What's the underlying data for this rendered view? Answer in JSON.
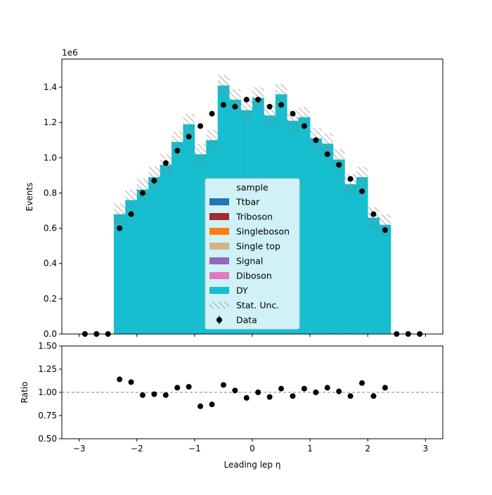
{
  "chart_data": [
    {
      "type": "bar",
      "panel": "main",
      "stacked": true,
      "ylabel": "Events",
      "y_scale_label": "1e6",
      "xlim": [
        -3.3,
        3.3
      ],
      "ylim": [
        0,
        1.56
      ],
      "yticks": [
        0.0,
        0.2,
        0.4,
        0.6,
        0.8,
        1.0,
        1.2,
        1.4
      ],
      "ytick_labels": [
        "0.0",
        "0.2",
        "0.4",
        "0.6",
        "0.8",
        "1.0",
        "1.2",
        "1.4"
      ],
      "bin_edges": [
        -2.4,
        -2.2,
        -2.0,
        -1.8,
        -1.6,
        -1.4,
        -1.2,
        -1.0,
        -0.8,
        -0.6,
        -0.4,
        -0.2,
        0.0,
        0.2,
        0.4,
        0.6,
        0.8,
        1.0,
        1.2,
        1.4,
        1.6,
        1.8,
        2.0,
        2.2,
        2.4
      ],
      "series": [
        {
          "name": "Ttbar",
          "color": "#1f77b4",
          "values": [
            0,
            0,
            0,
            0,
            0,
            0,
            0,
            0,
            0,
            0,
            0,
            0,
            0,
            0,
            0,
            0,
            0,
            0,
            0,
            0,
            0,
            0,
            0,
            0
          ]
        },
        {
          "name": "Triboson",
          "color": "#a52a2a",
          "values": [
            0,
            0,
            0,
            0,
            0,
            0,
            0,
            0,
            0,
            0,
            0,
            0,
            0,
            0,
            0,
            0,
            0,
            0,
            0,
            0,
            0,
            0,
            0,
            0
          ]
        },
        {
          "name": "Singleboson",
          "color": "#ff7f0e",
          "values": [
            0,
            0,
            0,
            0,
            0,
            0,
            0,
            0,
            0,
            0,
            0,
            0,
            0,
            0,
            0,
            0,
            0,
            0,
            0,
            0,
            0,
            0,
            0,
            0
          ]
        },
        {
          "name": "Single top",
          "color": "#d2b48c",
          "values": [
            0,
            0,
            0,
            0,
            0,
            0,
            0,
            0,
            0,
            0,
            0,
            0,
            0,
            0,
            0,
            0,
            0,
            0,
            0,
            0,
            0,
            0,
            0,
            0
          ]
        },
        {
          "name": "Signal",
          "color": "#9467bd",
          "values": [
            0,
            0,
            0,
            0,
            0,
            0,
            0,
            0,
            0,
            0,
            0,
            0,
            0,
            0,
            0,
            0,
            0,
            0,
            0,
            0,
            0,
            0,
            0,
            0
          ]
        },
        {
          "name": "Diboson",
          "color": "#e377c2",
          "values": [
            0,
            0,
            0,
            0,
            0,
            0,
            0,
            0,
            0,
            0,
            0,
            0,
            0,
            0,
            0,
            0,
            0,
            0,
            0,
            0,
            0,
            0,
            0,
            0
          ]
        },
        {
          "name": "DY",
          "color": "#17becf",
          "values": [
            0.68,
            0.76,
            0.82,
            0.89,
            0.96,
            1.09,
            1.19,
            1.02,
            1.1,
            1.41,
            1.33,
            1.27,
            1.34,
            1.24,
            1.36,
            1.21,
            1.23,
            1.11,
            1.08,
            0.99,
            0.85,
            0.89,
            0.66,
            0.62
          ]
        }
      ],
      "stat_unc": {
        "name": "Stat. Unc.",
        "half_width": 0.06
      },
      "data_points": {
        "name": "Data",
        "x": [
          -2.9,
          -2.7,
          -2.5,
          -2.3,
          -2.1,
          -1.9,
          -1.7,
          -1.5,
          -1.3,
          -1.1,
          -0.9,
          -0.7,
          -0.5,
          -0.3,
          -0.1,
          0.1,
          0.3,
          0.5,
          0.7,
          0.9,
          1.1,
          1.3,
          1.5,
          1.7,
          1.9,
          2.1,
          2.3,
          2.5,
          2.7,
          2.9
        ],
        "y": [
          0,
          0,
          0,
          0.6,
          0.68,
          0.8,
          0.87,
          0.97,
          1.04,
          1.12,
          1.18,
          1.25,
          1.3,
          1.29,
          1.33,
          1.33,
          1.29,
          1.3,
          1.25,
          1.18,
          1.1,
          1.02,
          0.96,
          0.88,
          0.81,
          0.68,
          0.59,
          0,
          0,
          0
        ]
      },
      "legend": {
        "title": "sample",
        "placement": "center-bottom"
      }
    },
    {
      "type": "scatter",
      "panel": "ratio",
      "xlabel": "Leading lep η",
      "ylabel": "Ratio",
      "xlim": [
        -3.3,
        3.3
      ],
      "ylim": [
        0.5,
        1.5
      ],
      "xticks": [
        -3,
        -2,
        -1,
        0,
        1,
        2,
        3
      ],
      "xtick_labels": [
        "−3",
        "−2",
        "−1",
        "0",
        "1",
        "2",
        "3"
      ],
      "yticks": [
        0.5,
        0.75,
        1.0,
        1.25,
        1.5
      ],
      "ytick_labels": [
        "0.50",
        "0.75",
        "1.00",
        "1.25",
        "1.50"
      ],
      "reference_line": 1.0,
      "x": [
        -2.3,
        -2.1,
        -1.9,
        -1.7,
        -1.5,
        -1.3,
        -1.1,
        -0.9,
        -0.7,
        -0.5,
        -0.3,
        -0.1,
        0.1,
        0.3,
        0.5,
        0.7,
        0.9,
        1.1,
        1.3,
        1.5,
        1.7,
        1.9,
        2.1,
        2.3
      ],
      "y": [
        1.14,
        1.11,
        0.97,
        0.98,
        0.97,
        1.05,
        1.06,
        0.85,
        0.87,
        1.08,
        1.02,
        0.94,
        1.0,
        0.95,
        1.04,
        0.96,
        1.04,
        1.0,
        1.05,
        1.01,
        0.96,
        1.1,
        0.96,
        1.05
      ]
    }
  ]
}
